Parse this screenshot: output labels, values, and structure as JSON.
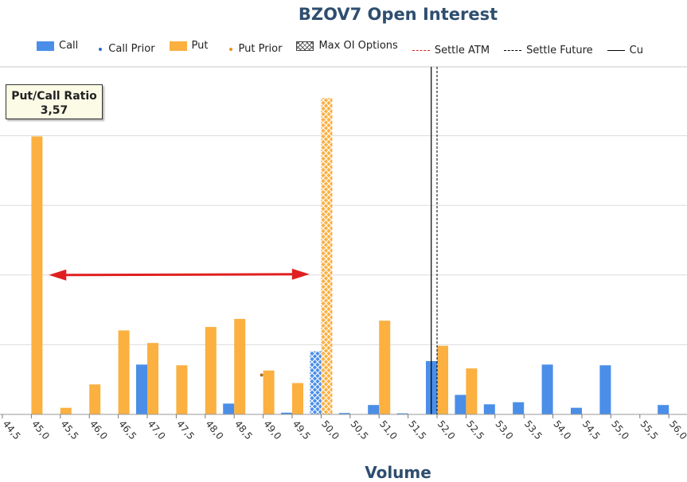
{
  "chart_data": {
    "type": "bar",
    "title": "BZOV7 Open Interest",
    "xlabel": "Volume",
    "ylabel": "",
    "categories": [
      "44,5",
      "45,0",
      "45,5",
      "46,0",
      "46,5",
      "47,0",
      "47,5",
      "48,0",
      "48,5",
      "49,0",
      "49,5",
      "50,0",
      "50,5",
      "51,0",
      "51,5",
      "52,0",
      "52,5",
      "53,0",
      "53,5",
      "54,0",
      "54,5",
      "55,0",
      "55,5",
      "56,0"
    ],
    "ylim": [
      0,
      100
    ],
    "grid": true,
    "legend_position": "top",
    "legend": [
      {
        "label": "Call",
        "kind": "box",
        "color": "#4a8ee8"
      },
      {
        "label": "Call Prior",
        "kind": "dot",
        "color": "#2a6cc8"
      },
      {
        "label": "Put",
        "kind": "box",
        "color": "#fbb040"
      },
      {
        "label": "Put Prior",
        "kind": "dot",
        "color": "#e8951a"
      },
      {
        "label": "Max OI Options",
        "kind": "hatch",
        "color": "#555555"
      },
      {
        "label": "Settle ATM",
        "kind": "dash",
        "color": "#e02020"
      },
      {
        "label": "Settle Future",
        "kind": "dash",
        "color": "#000000"
      },
      {
        "label": "Cu",
        "kind": "solid",
        "color": "#000000"
      }
    ],
    "series": [
      {
        "name": "Call",
        "color": "#4a8ee8",
        "values": [
          0,
          0,
          0,
          0,
          0,
          14.3,
          0,
          0,
          3.1,
          0,
          0.5,
          18.1,
          0.4,
          2.7,
          0.3,
          15.3,
          5.6,
          2.9,
          3.5,
          14.3,
          1.9,
          14.1,
          0,
          2.7
        ]
      },
      {
        "name": "Put",
        "color": "#fbb040",
        "values": [
          0,
          79.8,
          1.9,
          8.6,
          24.1,
          20.5,
          14.1,
          25.1,
          27.4,
          12.6,
          9.0,
          90.8,
          0,
          26.9,
          0,
          19.7,
          13.2,
          0,
          0,
          0,
          0,
          0,
          0,
          0
        ]
      }
    ],
    "max_oi": {
      "put_index": 11,
      "call_index": 11
    },
    "prior_markers": [
      {
        "series": "Put Prior",
        "index": 9,
        "value": 11.3
      }
    ],
    "settle_future_x": 52.0,
    "current_x": 51.9,
    "annotation": {
      "title": "Put/Call Ratio",
      "value": "3,57"
    },
    "arrow": {
      "from_x": 45.3,
      "to_x": 49.8,
      "y": 40.0,
      "color": "#e02020"
    }
  }
}
